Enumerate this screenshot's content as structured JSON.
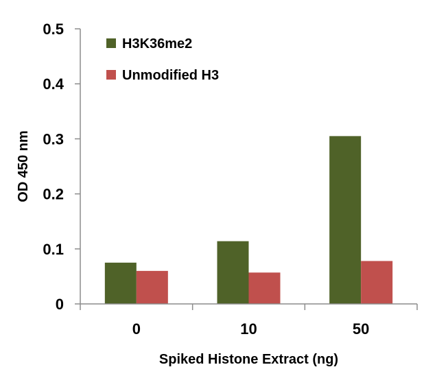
{
  "chart_data": {
    "type": "bar",
    "title": "",
    "xlabel": "Spiked Histone Extract (ng)",
    "ylabel": "OD 450 nm",
    "categories": [
      "0",
      "10",
      "50"
    ],
    "ylim": [
      0,
      0.5
    ],
    "yticks": [
      "0",
      "0.1",
      "0.2",
      "0.3",
      "0.4",
      "0.5"
    ],
    "ytick_values": [
      0,
      0.1,
      0.2,
      0.3,
      0.4,
      0.5
    ],
    "grid": false,
    "legend_position": "top-left",
    "series": [
      {
        "name": "H3K36me2",
        "color": "#4f6228",
        "values": [
          0.075,
          0.114,
          0.305
        ]
      },
      {
        "name": "Unmodified H3",
        "color": "#c0504d",
        "values": [
          0.06,
          0.057,
          0.078
        ]
      }
    ]
  }
}
